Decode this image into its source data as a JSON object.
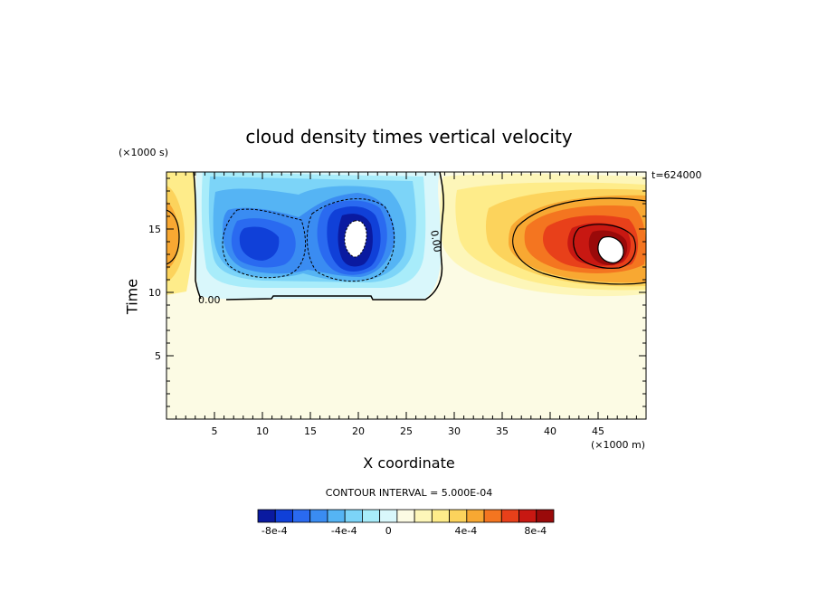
{
  "chart_data": {
    "type": "heatmap",
    "title": "cloud density times vertical velocity",
    "xlabel": "X coordinate",
    "ylabel": "Time",
    "x_unit": "(×1000 m)",
    "y_unit": "(×1000 s)",
    "time_stamp": "t=624000",
    "contour_note": "CONTOUR INTERVAL = 5.000E-04",
    "xlim": [
      0,
      50
    ],
    "ylim": [
      0,
      19.5
    ],
    "x_ticks": [
      "5",
      "10",
      "15",
      "20",
      "25",
      "30",
      "35",
      "40",
      "45"
    ],
    "y_ticks": [
      "5",
      "10",
      "15"
    ],
    "contour_labels": [
      "0.00",
      "0.00"
    ],
    "colorbar": {
      "tick_labels": [
        "-8e-4",
        "-4e-4",
        "0",
        "4e-4",
        "8e-4"
      ],
      "colors": [
        "#0a1aa0",
        "#1040d8",
        "#2a6af0",
        "#3a8cf2",
        "#55b4f4",
        "#7cd4f8",
        "#a8ecfa",
        "#d9f7fb",
        "#fcfbe4",
        "#fdf6b9",
        "#feec8a",
        "#fcd35c",
        "#f8a832",
        "#f47520",
        "#e8401a",
        "#c81812",
        "#9a0a0a"
      ]
    },
    "features": [
      {
        "name": "negative cell",
        "x_range": [
          3.5,
          29
        ],
        "y_range": [
          9.5,
          19.5
        ],
        "min": -0.0012,
        "center": [
          19,
          14.5
        ]
      },
      {
        "name": "positive cell",
        "x_range": [
          29,
          50
        ],
        "y_range": [
          10,
          19.5
        ],
        "max": 0.0012,
        "center": [
          46,
          14
        ]
      },
      {
        "name": "positive edge cell",
        "x_range": [
          0,
          3
        ],
        "y_range": [
          10,
          19.5
        ],
        "max": 0.0007,
        "center": [
          0.5,
          14.5
        ]
      }
    ]
  }
}
